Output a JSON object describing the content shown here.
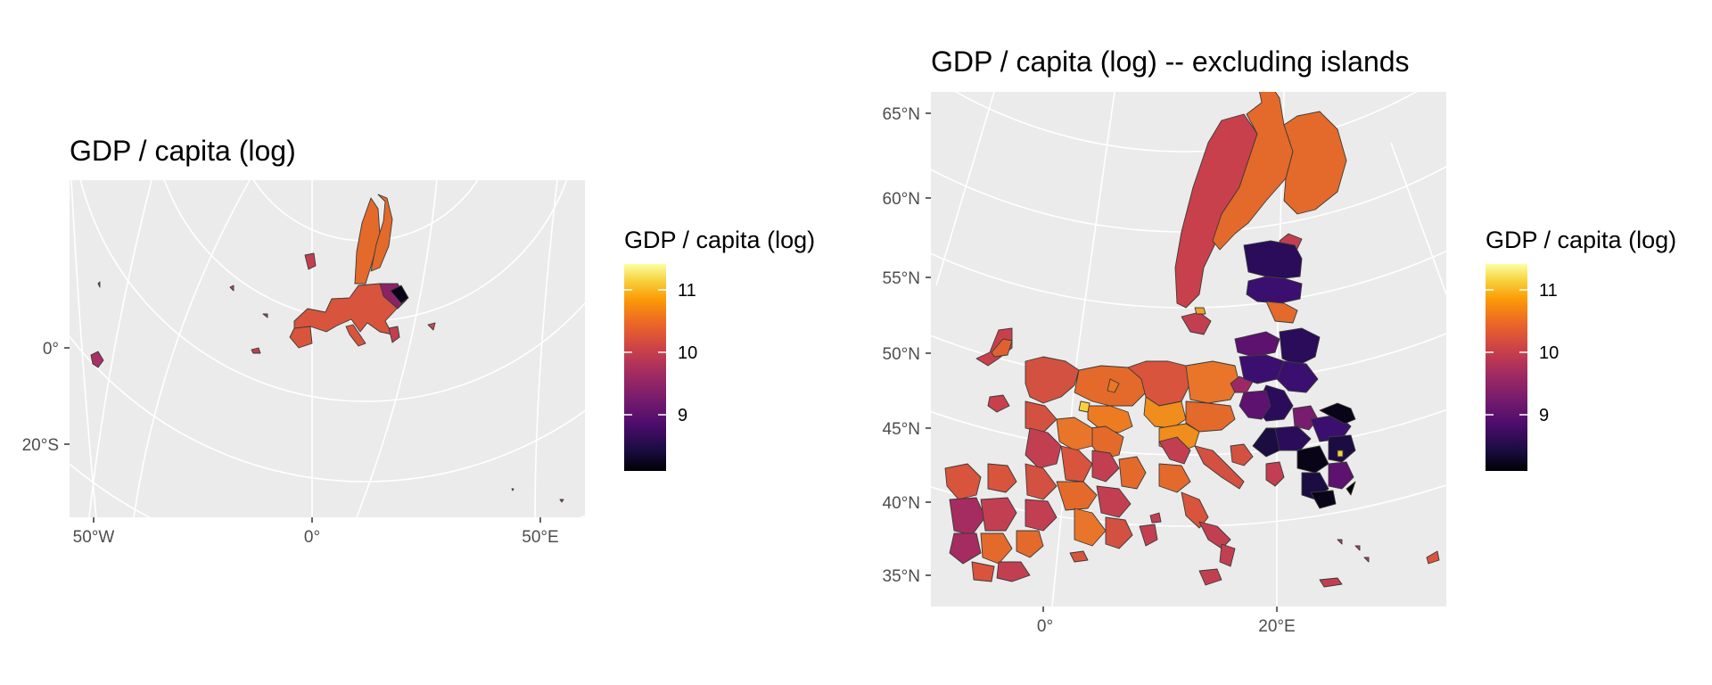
{
  "figure": {
    "left_panel": {
      "title": "GDP / capita (log)",
      "y_ticks": [
        "0°",
        "20°S"
      ],
      "x_ticks": [
        "50°W",
        "0°",
        "50°E"
      ],
      "legend": {
        "title": "GDP / capita (log)",
        "labels": [
          "11",
          "10",
          "9"
        ]
      }
    },
    "right_panel": {
      "title": "GDP / capita (log) -- excluding islands",
      "y_ticks": [
        "65°N",
        "60°N",
        "55°N",
        "50°N",
        "45°N",
        "40°N",
        "35°N"
      ],
      "x_ticks": [
        "0°",
        "20°E"
      ],
      "legend": {
        "title": "GDP / capita (log)",
        "labels": [
          "11",
          "10",
          "9"
        ]
      }
    }
  },
  "colors": {
    "panel_background": "#ebebeb",
    "gridline": "#ffffff",
    "region_border": "#3a3a3a",
    "scale_low": "#000004",
    "scale_mid": "#b52f59",
    "scale_high": "#fcffa4"
  },
  "map_data": {
    "projection": "Lambert azimuthal equal-area centred on Europe",
    "variable": "GDP / capita (log)",
    "color_scale": "inferno",
    "legend_breaks": [
      9,
      10,
      11
    ]
  }
}
